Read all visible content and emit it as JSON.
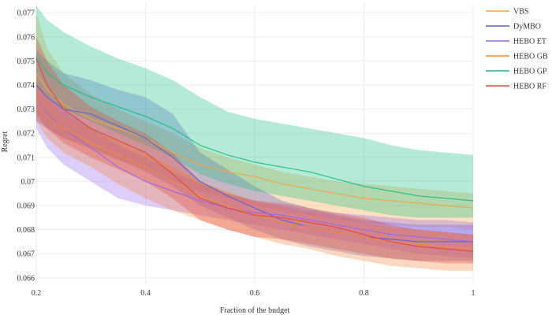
{
  "chart_data": {
    "type": "line",
    "xlabel": "Fraction of the budget",
    "ylabel": "Regret",
    "xlim": [
      0.2,
      1.0
    ],
    "ylim": [
      0.0657,
      0.0774
    ],
    "x_ticks": [
      "0.2",
      "0.4",
      "0.6",
      "0.8",
      "1"
    ],
    "x_tick_values": [
      0.2,
      0.4,
      0.6,
      0.8,
      1.0
    ],
    "y_ticks": [
      "0.066",
      "0.067",
      "0.068",
      "0.069",
      "0.07",
      "0.071",
      "0.072",
      "0.073",
      "0.074",
      "0.075",
      "0.076",
      "0.077"
    ],
    "y_tick_values": [
      0.066,
      0.067,
      0.068,
      0.069,
      0.07,
      0.071,
      0.072,
      0.073,
      0.074,
      0.075,
      0.076,
      0.077
    ],
    "grid": true,
    "legend_position": "right",
    "series": [
      {
        "name": "VBS",
        "color": "#f4a444",
        "x": [
          0.2,
          0.22,
          0.25,
          0.3,
          0.35,
          0.4,
          0.45,
          0.5,
          0.55,
          0.6,
          0.65,
          0.7,
          0.75,
          0.8,
          0.85,
          0.9,
          0.95,
          1.0
        ],
        "y": [
          0.0745,
          0.0738,
          0.0732,
          0.0726,
          0.0722,
          0.0718,
          0.0712,
          0.0707,
          0.0704,
          0.0702,
          0.0699,
          0.0697,
          0.0695,
          0.0693,
          0.0692,
          0.0691,
          0.069,
          0.0689
        ],
        "upper": [
          0.077,
          0.0755,
          0.0745,
          0.0736,
          0.073,
          0.0725,
          0.072,
          0.0714,
          0.071,
          0.0707,
          0.0704,
          0.0702,
          0.07,
          0.0699,
          0.0698,
          0.0697,
          0.0696,
          0.0695
        ],
        "lower": [
          0.0725,
          0.0722,
          0.0718,
          0.0713,
          0.0709,
          0.0705,
          0.07,
          0.0696,
          0.0693,
          0.069,
          0.0688,
          0.0686,
          0.0684,
          0.0683,
          0.0682,
          0.0681,
          0.0681,
          0.068
        ]
      },
      {
        "name": "DyMBO",
        "color": "#5a61d6",
        "x": [
          0.2,
          0.22,
          0.25,
          0.3,
          0.35,
          0.4,
          0.45,
          0.5,
          0.55,
          0.6,
          0.65,
          0.7,
          0.75,
          0.8,
          0.85,
          0.9,
          0.95,
          1.0
        ],
        "y": [
          0.074,
          0.0735,
          0.073,
          0.0728,
          0.0723,
          0.0718,
          0.071,
          0.07,
          0.0694,
          0.0689,
          0.0684,
          0.0681,
          0.0679,
          0.0677,
          0.0676,
          0.0675,
          0.0675,
          0.0675
        ],
        "upper": [
          0.0755,
          0.075,
          0.0745,
          0.0742,
          0.0738,
          0.0735,
          0.0728,
          0.0712,
          0.0705,
          0.0698,
          0.0692,
          0.0689,
          0.0686,
          0.0684,
          0.0683,
          0.0682,
          0.0682,
          0.0682
        ],
        "lower": [
          0.0725,
          0.0722,
          0.0718,
          0.0714,
          0.0709,
          0.0704,
          0.0698,
          0.069,
          0.0685,
          0.068,
          0.0676,
          0.0673,
          0.0671,
          0.0669,
          0.0668,
          0.0667,
          0.0667,
          0.0667
        ]
      },
      {
        "name": "HEBO ET",
        "color": "#9966ee",
        "x": [
          0.2,
          0.22,
          0.25,
          0.3,
          0.35,
          0.4,
          0.45,
          0.5,
          0.55,
          0.6,
          0.65,
          0.7,
          0.75,
          0.8,
          0.85,
          0.9,
          0.95,
          1.0
        ],
        "y": [
          0.0733,
          0.0728,
          0.0722,
          0.0714,
          0.0706,
          0.07,
          0.0696,
          0.0692,
          0.0689,
          0.0687,
          0.0686,
          0.0684,
          0.0682,
          0.068,
          0.0678,
          0.0677,
          0.0676,
          0.0675
        ],
        "upper": [
          0.074,
          0.0735,
          0.073,
          0.0722,
          0.0715,
          0.071,
          0.0704,
          0.0699,
          0.0695,
          0.0692,
          0.069,
          0.0688,
          0.0687,
          0.0686,
          0.0685,
          0.0684,
          0.0684,
          0.0683
        ],
        "lower": [
          0.0722,
          0.0714,
          0.0707,
          0.07,
          0.0693,
          0.069,
          0.0688,
          0.0686,
          0.0684,
          0.0682,
          0.068,
          0.0678,
          0.0676,
          0.0674,
          0.0672,
          0.067,
          0.0669,
          0.0668
        ]
      },
      {
        "name": "HEBO GB",
        "color": "#f28a3c",
        "x": [
          0.2,
          0.22,
          0.25,
          0.3,
          0.35,
          0.4,
          0.45,
          0.5,
          0.55,
          0.6,
          0.65,
          0.7,
          0.75,
          0.8,
          0.85,
          0.9,
          0.95,
          1.0
        ],
        "y": [
          0.0733,
          0.0727,
          0.0722,
          0.0716,
          0.0711,
          0.0706,
          0.07,
          0.0694,
          0.069,
          0.0686,
          0.0683,
          0.0681,
          0.0679,
          0.0677,
          0.0675,
          0.0674,
          0.0673,
          0.0672
        ],
        "upper": [
          0.0742,
          0.0735,
          0.0728,
          0.0722,
          0.0717,
          0.0712,
          0.0706,
          0.07,
          0.0696,
          0.0692,
          0.0689,
          0.0687,
          0.0685,
          0.0683,
          0.0681,
          0.068,
          0.0679,
          0.0678
        ],
        "lower": [
          0.0725,
          0.0718,
          0.0712,
          0.0706,
          0.0699,
          0.0693,
          0.0688,
          0.0684,
          0.068,
          0.0677,
          0.0674,
          0.0672,
          0.0669,
          0.0667,
          0.0665,
          0.0664,
          0.0663,
          0.0663
        ]
      },
      {
        "name": "HEBO GP",
        "color": "#1fbf85",
        "x": [
          0.2,
          0.22,
          0.25,
          0.3,
          0.35,
          0.4,
          0.45,
          0.5,
          0.55,
          0.6,
          0.65,
          0.7,
          0.75,
          0.8,
          0.85,
          0.9,
          0.95,
          1.0
        ],
        "y": [
          0.0752,
          0.0745,
          0.074,
          0.0735,
          0.0731,
          0.0727,
          0.0722,
          0.0715,
          0.0711,
          0.0708,
          0.0706,
          0.0704,
          0.0701,
          0.0698,
          0.0696,
          0.0694,
          0.0693,
          0.0692
        ],
        "upper": [
          0.0773,
          0.0767,
          0.0762,
          0.0756,
          0.0751,
          0.0747,
          0.0742,
          0.0735,
          0.0729,
          0.0726,
          0.0724,
          0.0722,
          0.072,
          0.0718,
          0.0715,
          0.0713,
          0.0712,
          0.0711
        ],
        "lower": [
          0.074,
          0.0735,
          0.073,
          0.0725,
          0.072,
          0.0715,
          0.071,
          0.0703,
          0.0699,
          0.0696,
          0.0694,
          0.0692,
          0.069,
          0.0688,
          0.0686,
          0.0685,
          0.0685,
          0.0685
        ]
      },
      {
        "name": "HEBO RF",
        "color": "#e04a3a",
        "x": [
          0.2,
          0.22,
          0.25,
          0.3,
          0.35,
          0.4,
          0.45,
          0.5,
          0.55,
          0.6,
          0.65,
          0.7,
          0.75,
          0.8,
          0.85,
          0.9,
          0.95,
          1.0
        ],
        "y": [
          0.0751,
          0.074,
          0.073,
          0.0722,
          0.0717,
          0.0712,
          0.0703,
          0.0693,
          0.0689,
          0.0686,
          0.0685,
          0.0683,
          0.0681,
          0.0678,
          0.0675,
          0.0673,
          0.0672,
          0.0671
        ],
        "upper": [
          0.076,
          0.075,
          0.074,
          0.0731,
          0.0725,
          0.072,
          0.0712,
          0.07,
          0.0695,
          0.0692,
          0.0691,
          0.0689,
          0.0687,
          0.0685,
          0.0682,
          0.068,
          0.0679,
          0.0678
        ],
        "lower": [
          0.0728,
          0.0722,
          0.0716,
          0.071,
          0.0705,
          0.07,
          0.0693,
          0.0684,
          0.068,
          0.0677,
          0.0676,
          0.0674,
          0.0672,
          0.067,
          0.0668,
          0.0667,
          0.0666,
          0.0666
        ]
      }
    ]
  }
}
